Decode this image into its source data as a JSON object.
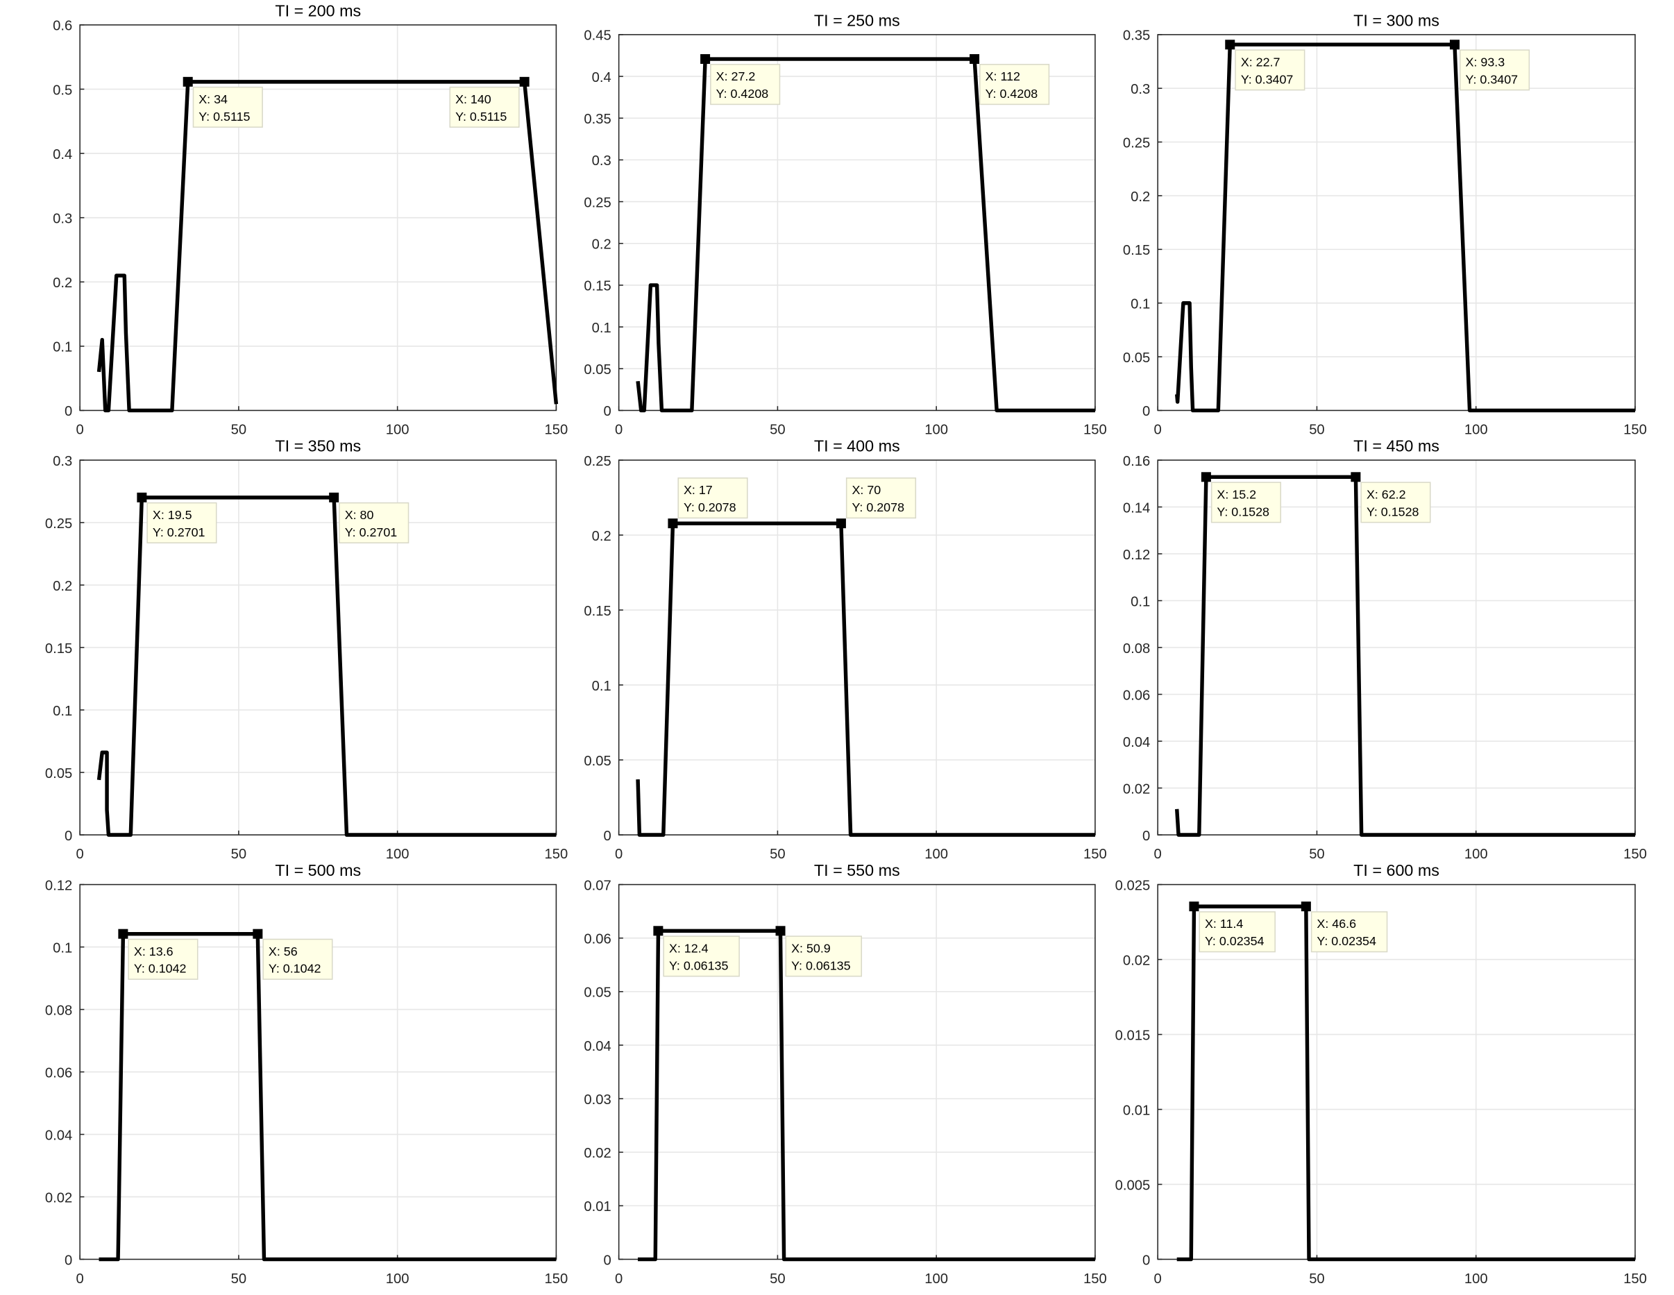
{
  "chart_data": [
    {
      "type": "line",
      "title": "TI = 200 ms",
      "xlim": [
        0,
        150
      ],
      "ylim": [
        0,
        0.6
      ],
      "xticks": [
        0,
        50,
        100,
        150
      ],
      "yticks": [
        0,
        0.1,
        0.2,
        0.3,
        0.4,
        0.5,
        0.6
      ],
      "grid": true,
      "x": [
        6,
        7,
        8,
        9,
        11.5,
        14,
        14.5,
        15.5,
        29,
        34,
        140,
        150
      ],
      "y": [
        0.06,
        0.11,
        0,
        0,
        0.21,
        0.21,
        0.12,
        0,
        0,
        0.5115,
        0.5115,
        0.01
      ],
      "datatips": [
        {
          "x": 34,
          "y": 0.5115,
          "xlabel": "X: 34",
          "ylabel": "Y: 0.5115",
          "placement": "below-right"
        },
        {
          "x": 140,
          "y": 0.5115,
          "xlabel": "X: 140",
          "ylabel": "Y: 0.5115",
          "placement": "below-left"
        }
      ]
    },
    {
      "type": "line",
      "title": "TI = 250 ms",
      "xlim": [
        0,
        150
      ],
      "ylim": [
        0,
        0.45
      ],
      "xticks": [
        0,
        50,
        100,
        150
      ],
      "yticks": [
        0,
        0.05,
        0.1,
        0.15,
        0.2,
        0.25,
        0.3,
        0.35,
        0.4,
        0.45
      ],
      "grid": true,
      "x": [
        6,
        7,
        8,
        10,
        12,
        12.5,
        13.5,
        23,
        27.2,
        112,
        119,
        150
      ],
      "y": [
        0.035,
        0,
        0,
        0.15,
        0.15,
        0.08,
        0,
        0,
        0.4208,
        0.4208,
        0,
        0
      ],
      "datatips": [
        {
          "x": 27.2,
          "y": 0.4208,
          "xlabel": "X: 27.2",
          "ylabel": "Y: 0.4208",
          "placement": "below-right"
        },
        {
          "x": 112,
          "y": 0.4208,
          "xlabel": "X: 112",
          "ylabel": "Y: 0.4208",
          "placement": "below-right"
        }
      ]
    },
    {
      "type": "line",
      "title": "TI = 300 ms",
      "xlim": [
        0,
        150
      ],
      "ylim": [
        0,
        0.35
      ],
      "xticks": [
        0,
        50,
        100,
        150
      ],
      "yticks": [
        0,
        0.05,
        0.1,
        0.15,
        0.2,
        0.25,
        0.3,
        0.35
      ],
      "grid": true,
      "x": [
        6,
        6.2,
        8,
        10,
        10.5,
        11,
        19,
        22.7,
        93.3,
        98,
        150
      ],
      "y": [
        0.015,
        0.008,
        0.1,
        0.1,
        0.04,
        0,
        0,
        0.3407,
        0.3407,
        0,
        0
      ],
      "datatips": [
        {
          "x": 22.7,
          "y": 0.3407,
          "xlabel": "X: 22.7",
          "ylabel": "Y: 0.3407",
          "placement": "below-right"
        },
        {
          "x": 93.3,
          "y": 0.3407,
          "xlabel": "X: 93.3",
          "ylabel": "Y: 0.3407",
          "placement": "below-right"
        }
      ]
    },
    {
      "type": "line",
      "title": "TI = 350 ms",
      "xlim": [
        0,
        150
      ],
      "ylim": [
        0,
        0.3
      ],
      "xticks": [
        0,
        50,
        100,
        150
      ],
      "yticks": [
        0,
        0.05,
        0.1,
        0.15,
        0.2,
        0.25,
        0.3
      ],
      "grid": true,
      "x": [
        6,
        7,
        8.5,
        8.5,
        9,
        16,
        19.5,
        80,
        84,
        150
      ],
      "y": [
        0.044,
        0.066,
        0.066,
        0.02,
        0,
        0,
        0.2701,
        0.2701,
        0,
        0
      ],
      "datatips": [
        {
          "x": 19.5,
          "y": 0.2701,
          "xlabel": "X: 19.5",
          "ylabel": "Y: 0.2701",
          "placement": "below-right"
        },
        {
          "x": 80,
          "y": 0.2701,
          "xlabel": "X: 80",
          "ylabel": "Y: 0.2701",
          "placement": "below-right"
        }
      ]
    },
    {
      "type": "line",
      "title": "TI = 400 ms",
      "xlim": [
        0,
        150
      ],
      "ylim": [
        0,
        0.25
      ],
      "xticks": [
        0,
        50,
        100,
        150
      ],
      "yticks": [
        0,
        0.05,
        0.1,
        0.15,
        0.2,
        0.25
      ],
      "grid": true,
      "x": [
        6,
        6.5,
        14,
        17,
        70,
        73,
        150
      ],
      "y": [
        0.037,
        0,
        0,
        0.2078,
        0.2078,
        0,
        0
      ],
      "datatips": [
        {
          "x": 17,
          "y": 0.2078,
          "xlabel": "X: 17",
          "ylabel": "Y: 0.2078",
          "placement": "above-right"
        },
        {
          "x": 70,
          "y": 0.2078,
          "xlabel": "X: 70",
          "ylabel": "Y: 0.2078",
          "placement": "above-right"
        }
      ]
    },
    {
      "type": "line",
      "title": "TI = 450 ms",
      "xlim": [
        0,
        150
      ],
      "ylim": [
        0,
        0.16
      ],
      "xticks": [
        0,
        50,
        100,
        150
      ],
      "yticks": [
        0,
        0.02,
        0.04,
        0.06,
        0.08,
        0.1,
        0.12,
        0.14,
        0.16
      ],
      "grid": true,
      "x": [
        6,
        6.5,
        13,
        15.2,
        62.2,
        64,
        150
      ],
      "y": [
        0.011,
        0,
        0,
        0.1528,
        0.1528,
        0,
        0
      ],
      "datatips": [
        {
          "x": 15.2,
          "y": 0.1528,
          "xlabel": "X: 15.2",
          "ylabel": "Y: 0.1528",
          "placement": "below-right"
        },
        {
          "x": 62.2,
          "y": 0.1528,
          "xlabel": "X: 62.2",
          "ylabel": "Y: 0.1528",
          "placement": "below-right"
        }
      ]
    },
    {
      "type": "line",
      "title": "TI = 500 ms",
      "xlim": [
        0,
        150
      ],
      "ylim": [
        0,
        0.12
      ],
      "xticks": [
        0,
        50,
        100,
        150
      ],
      "yticks": [
        0,
        0.02,
        0.04,
        0.06,
        0.08,
        0.1,
        0.12
      ],
      "grid": true,
      "x": [
        6,
        12,
        13.6,
        56,
        58,
        150
      ],
      "y": [
        0,
        0,
        0.1042,
        0.1042,
        0,
        0
      ],
      "datatips": [
        {
          "x": 13.6,
          "y": 0.1042,
          "xlabel": "X: 13.6",
          "ylabel": "Y: 0.1042",
          "placement": "below-right"
        },
        {
          "x": 56,
          "y": 0.1042,
          "xlabel": "X: 56",
          "ylabel": "Y: 0.1042",
          "placement": "below-right"
        }
      ]
    },
    {
      "type": "line",
      "title": "TI = 550 ms",
      "xlim": [
        0,
        150
      ],
      "ylim": [
        0,
        0.07
      ],
      "xticks": [
        0,
        50,
        100,
        150
      ],
      "yticks": [
        0,
        0.01,
        0.02,
        0.03,
        0.04,
        0.05,
        0.06,
        0.07
      ],
      "grid": true,
      "x": [
        6,
        11.5,
        12.4,
        50.9,
        52,
        150
      ],
      "y": [
        0,
        0,
        0.06135,
        0.06135,
        0,
        0
      ],
      "datatips": [
        {
          "x": 12.4,
          "y": 0.06135,
          "xlabel": "X: 12.4",
          "ylabel": "Y: 0.06135",
          "placement": "below-right"
        },
        {
          "x": 50.9,
          "y": 0.06135,
          "xlabel": "X: 50.9",
          "ylabel": "Y: 0.06135",
          "placement": "below-right"
        }
      ]
    },
    {
      "type": "line",
      "title": "TI = 600 ms",
      "xlim": [
        0,
        150
      ],
      "ylim": [
        0,
        0.025
      ],
      "xticks": [
        0,
        50,
        100,
        150
      ],
      "yticks": [
        0,
        0.005,
        0.01,
        0.015,
        0.02,
        0.025
      ],
      "grid": true,
      "x": [
        6,
        10.5,
        11.4,
        46.6,
        47.5,
        150
      ],
      "y": [
        0,
        0,
        0.02354,
        0.02354,
        0,
        0
      ],
      "datatips": [
        {
          "x": 11.4,
          "y": 0.02354,
          "xlabel": "X: 11.4",
          "ylabel": "Y: 0.02354",
          "placement": "below-right"
        },
        {
          "x": 46.6,
          "y": 0.02354,
          "xlabel": "X: 46.6",
          "ylabel": "Y: 0.02354",
          "placement": "below-right"
        }
      ]
    }
  ]
}
